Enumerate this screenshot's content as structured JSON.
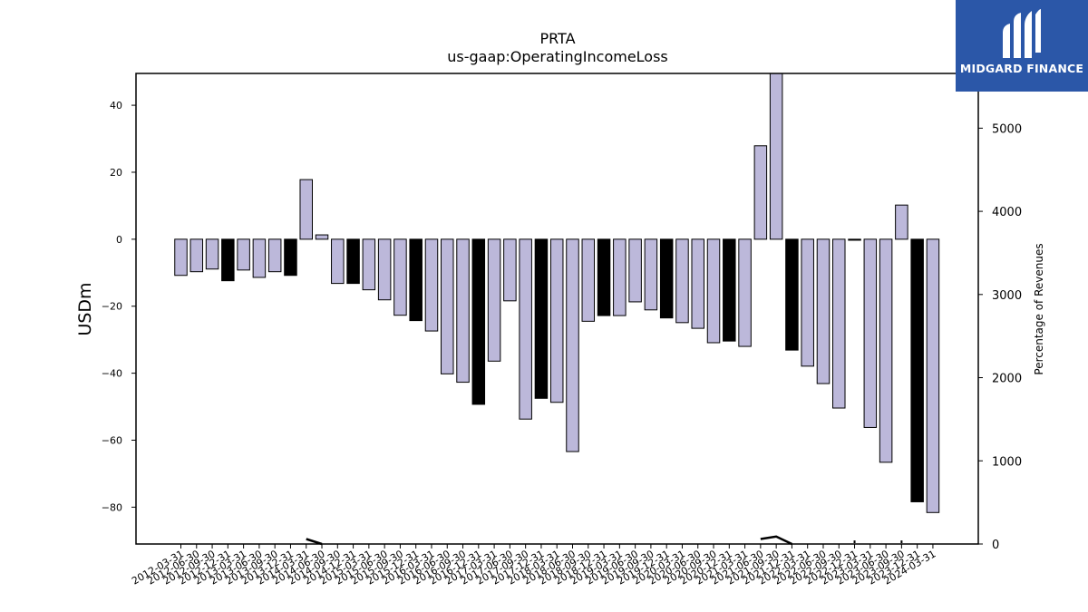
{
  "brand": {
    "name": "MIDGARD FINANCE",
    "bg_color": "#2b57a8",
    "icon": "midgard-logo-icon"
  },
  "chart_data": {
    "type": "bar",
    "title": "PRTA",
    "subtitle": "us-gaap:OperatingIncomeLoss",
    "ylabel": "USDm",
    "y2label": "Percentage of Revenues",
    "ylim": [
      -91,
      49.5
    ],
    "y2lim": [
      0,
      5658
    ],
    "yticks": [
      40,
      20,
      0,
      -20,
      -40,
      -60,
      -80
    ],
    "y2ticks": [
      5000,
      4000,
      3000,
      2000,
      1000,
      0
    ],
    "colors": {
      "bar": "#bcb8da",
      "q4_bar": "#000000",
      "edge": "#000000",
      "line": "#000000"
    },
    "categories": [
      "2012-03-31",
      "2012-06-30",
      "2012-09-30",
      "2012-12-31",
      "2013-03-31",
      "2013-06-30",
      "2013-09-30",
      "2013-12-31",
      "2014-03-31",
      "2014-06-30",
      "2014-09-30",
      "2014-12-31",
      "2015-03-31",
      "2015-06-30",
      "2015-09-30",
      "2015-12-31",
      "2016-03-31",
      "2016-06-30",
      "2016-09-30",
      "2016-12-31",
      "2017-03-31",
      "2017-06-30",
      "2017-09-30",
      "2017-12-31",
      "2018-03-31",
      "2018-06-30",
      "2018-09-30",
      "2018-12-31",
      "2019-03-31",
      "2019-06-30",
      "2019-09-30",
      "2019-12-31",
      "2020-03-31",
      "2020-06-30",
      "2020-09-30",
      "2020-12-31",
      "2021-03-31",
      "2021-06-30",
      "2021-09-30",
      "2021-12-31",
      "2022-03-31",
      "2022-06-30",
      "2022-09-30",
      "2022-12-31",
      "2023-03-31",
      "2023-06-30",
      "2023-09-30",
      "2023-12-31",
      "2024-03-31"
    ],
    "values": [
      -10.8,
      -9.7,
      -8.9,
      -12.4,
      -9.2,
      -11.4,
      -9.7,
      -10.8,
      17.8,
      1.3,
      -13.2,
      -13.2,
      -15.1,
      -18.1,
      -22.7,
      -24.3,
      -27.4,
      -40.2,
      -42.7,
      -49.3,
      -36.4,
      -18.4,
      -53.7,
      -47.5,
      -48.7,
      -63.4,
      -24.5,
      -22.8,
      -22.8,
      -18.7,
      -21.1,
      -23.5,
      -24.9,
      -26.6,
      -30.9,
      -30.4,
      -32.0,
      27.9,
      49.5,
      -33.1,
      -37.9,
      -43.1,
      -50.4,
      -0.3,
      -56.2,
      -66.6,
      10.2,
      -78.4,
      -81.6
    ],
    "q4": [
      false,
      false,
      false,
      true,
      false,
      false,
      false,
      true,
      false,
      false,
      false,
      true,
      false,
      false,
      false,
      true,
      false,
      false,
      false,
      true,
      false,
      false,
      false,
      true,
      false,
      false,
      false,
      true,
      false,
      false,
      false,
      true,
      false,
      false,
      false,
      true,
      false,
      false,
      false,
      true,
      false,
      false,
      false,
      true,
      false,
      false,
      false,
      true,
      false
    ],
    "pct_revenue_line": [
      null,
      null,
      null,
      null,
      null,
      null,
      null,
      null,
      60,
      0,
      null,
      null,
      null,
      null,
      null,
      null,
      null,
      null,
      null,
      null,
      null,
      null,
      null,
      null,
      null,
      null,
      null,
      null,
      null,
      null,
      null,
      null,
      null,
      null,
      null,
      null,
      null,
      60,
      90,
      0,
      null,
      null,
      null,
      10,
      null,
      null,
      10,
      null,
      null
    ]
  }
}
